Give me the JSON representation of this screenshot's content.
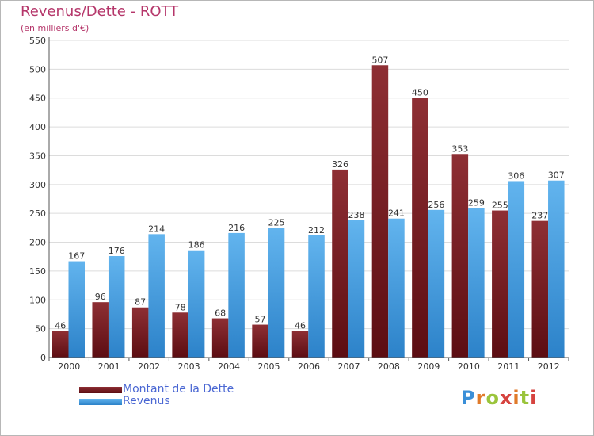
{
  "title": "Revenus/Dette - ROTT",
  "subtitle": "(en milliers d'€)",
  "logo_text": "Proxiti",
  "colors": {
    "debt_top": "#8e2f34",
    "debt_bottom": "#5c0d12",
    "rev_top": "#62b4ee",
    "rev_bottom": "#2c82c9",
    "title": "#b5366a",
    "legend_text": "#4a67d3"
  },
  "legend": [
    {
      "label": "Montant de la Dette"
    },
    {
      "label": "Revenus"
    }
  ],
  "chart_data": {
    "type": "bar",
    "categories": [
      "2000",
      "2001",
      "2002",
      "2003",
      "2004",
      "2005",
      "2006",
      "2007",
      "2008",
      "2009",
      "2010",
      "2011",
      "2012"
    ],
    "series": [
      {
        "name": "Montant de la Dette",
        "values": [
          46,
          96,
          87,
          78,
          68,
          57,
          46,
          326,
          507,
          450,
          353,
          255,
          237
        ]
      },
      {
        "name": "Revenus",
        "values": [
          167,
          176,
          214,
          186,
          216,
          225,
          212,
          238,
          241,
          256,
          259,
          306,
          307
        ]
      }
    ],
    "title": "Revenus/Dette - ROTT",
    "subtitle": "(en milliers d'€)",
    "ylim": [
      0,
      550
    ],
    "yticks": [
      0,
      50,
      100,
      150,
      200,
      250,
      300,
      350,
      400,
      450,
      500,
      550
    ],
    "grid": true,
    "legend_position": "bottom-left"
  }
}
